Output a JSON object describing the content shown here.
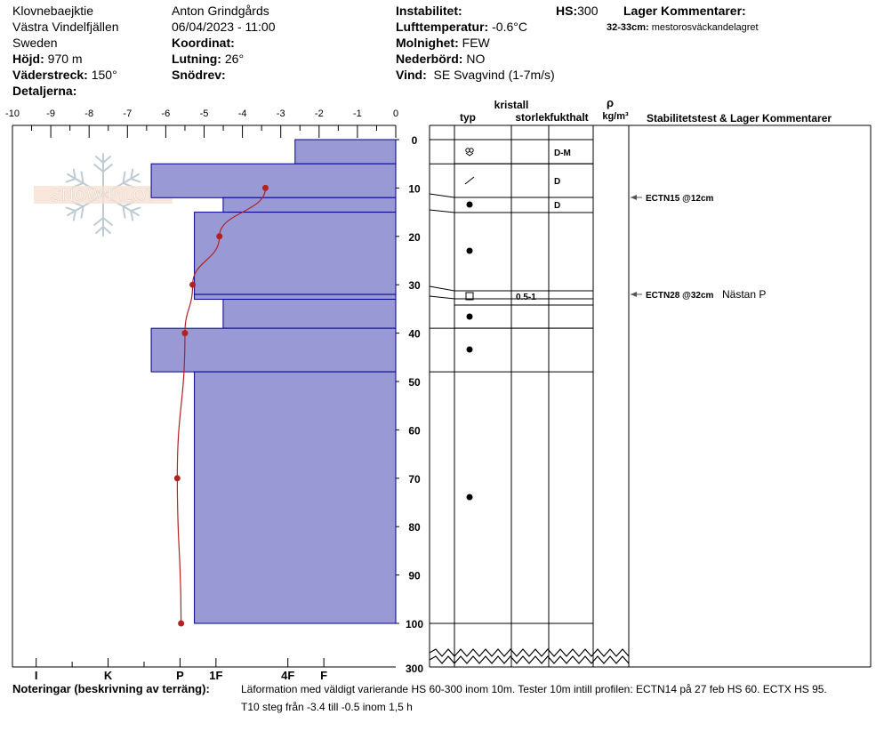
{
  "header": {
    "location": "Klovnebaejktie",
    "region": "Västra Vindelfjällen",
    "country": "Sweden",
    "elevation_label": "Höjd:",
    "elevation": "970 m",
    "aspect_label": "Väderstreck:",
    "aspect": "150°",
    "details_label": "Detaljerna:",
    "observer": "Anton Grindgårds",
    "datetime": "06/04/2023 - 11:00",
    "coord_label": "Koordinat:",
    "slope_label": "Lutning:",
    "slope": "26°",
    "drift_label": "Snödrev:",
    "instability_label": "Instabilitet:",
    "air_temp_label": "Lufttemperatur:",
    "air_temp": "-0.6°C",
    "clouds_label": "Molnighet:",
    "clouds": "FEW",
    "precip_label": "Nederbörd:",
    "precip": "NO",
    "wind_label": "Vind:",
    "wind": "SE Svagvind (1-7m/s)",
    "hs_label": "HS:",
    "hs": "300",
    "layer_comments_label": "Lager Kommentarer:",
    "layer_comment_depth": "32-33cm:",
    "layer_comment_text": "mestorosväckandelagret"
  },
  "chart_data": {
    "type": "bar",
    "temp_axis": {
      "ticks": [
        "-10",
        "-9",
        "-8",
        "-7",
        "-6",
        "-5",
        "-4",
        "-3",
        "-2",
        "-1",
        "0"
      ],
      "range": [
        -10,
        0
      ]
    },
    "hardness_axis": {
      "labels": [
        "I",
        "K",
        "P",
        "1F",
        "4F",
        "F"
      ],
      "values": [
        5,
        4,
        3,
        2.5,
        1.5,
        1
      ]
    },
    "depth_axis": {
      "ticks": [
        "0",
        "10",
        "20",
        "30",
        "40",
        "50",
        "60",
        "70",
        "80",
        "90",
        "100"
      ],
      "bottom_label": "300",
      "range": [
        0,
        100
      ]
    },
    "hardness_layers": [
      {
        "top": 0,
        "bottom": 5,
        "hardness": 1.4
      },
      {
        "top": 5,
        "bottom": 12,
        "hardness": 3.4
      },
      {
        "top": 12,
        "bottom": 15,
        "hardness": 2.4
      },
      {
        "top": 15,
        "bottom": 32,
        "hardness": 2.8
      },
      {
        "top": 32,
        "bottom": 33,
        "hardness": 2.8
      },
      {
        "top": 33,
        "bottom": 39,
        "hardness": 2.4
      },
      {
        "top": 39,
        "bottom": 48,
        "hardness": 3.4
      },
      {
        "top": 48,
        "bottom": 100,
        "hardness": 2.8
      }
    ],
    "temperature_profile": [
      {
        "depth": 10,
        "temp": -3.4
      },
      {
        "depth": 20,
        "temp": -4.6
      },
      {
        "depth": 30,
        "temp": -5.3
      },
      {
        "depth": 40,
        "temp": -5.5
      },
      {
        "depth": 70,
        "temp": -5.7
      },
      {
        "depth": 100,
        "temp": -5.6
      }
    ],
    "columns": {
      "crystal": "kristall",
      "type": "typ",
      "size": "storlek",
      "moisture": "fukthalt",
      "rho": "ρ",
      "density_unit": "kg/m³",
      "comments": "Stabilitetstest & Lager Kommentarer"
    },
    "layer_boundaries": [
      0,
      5,
      12,
      15,
      32,
      33,
      39,
      48,
      100
    ],
    "layer_rows": [
      {
        "top": 0,
        "bottom": 5,
        "grain": "",
        "size": "",
        "moisture": ""
      },
      {
        "top": 5,
        "bottom": 12,
        "grain": "mixed",
        "size": "",
        "moisture": "D-M"
      },
      {
        "top": 12,
        "bottom": 15,
        "grain": "",
        "size": "",
        "moisture": "D"
      },
      {
        "top": 15,
        "bottom": 32,
        "grain": "round",
        "size": "",
        "moisture": "D"
      },
      {
        "top": 32,
        "bottom": 33,
        "grain": "",
        "size": "",
        "moisture": ""
      },
      {
        "top": 33,
        "bottom": 39,
        "grain": "facet",
        "size": "0.5-1",
        "moisture": ""
      },
      {
        "top": 39,
        "bottom": 48,
        "grain": "round",
        "size": "",
        "moisture": ""
      },
      {
        "top": 48,
        "bottom": 100,
        "grain": "round",
        "size": "",
        "moisture": ""
      }
    ],
    "grain_symbols": [
      {
        "depth": 2.5,
        "type": "mixed"
      },
      {
        "depth": 8.5,
        "type": "decomposing"
      },
      {
        "depth": 13.5,
        "type": "round"
      },
      {
        "depth": 23.5,
        "type": "round"
      },
      {
        "depth": 32.5,
        "type": "facet"
      },
      {
        "depth": 36,
        "type": "round"
      },
      {
        "depth": 43.5,
        "type": "round"
      },
      {
        "depth": 74,
        "type": "round"
      }
    ],
    "moisture_labels": [
      {
        "depth": 2.5,
        "text": "D-M"
      },
      {
        "depth": 8.5,
        "text": "D"
      },
      {
        "depth": 13.5,
        "text": "D"
      }
    ],
    "size_labels": [
      {
        "depth": 32.5,
        "text": "0.5-1"
      }
    ],
    "stability_tests": [
      {
        "depth": 12,
        "text": "ECTN15 @12cm",
        "comment": ""
      },
      {
        "depth": 32,
        "text": "ECTN28 @32cm",
        "comment": "Nästan P"
      }
    ]
  },
  "notes": {
    "label": "Noteringar (beskrivning av terräng):",
    "line1": "Läformation med väldigt varierande HS 60-300 inom 10m. Tester 10m intill profilen: ECTN14 på 27 feb HS 60. ECTX HS 95.",
    "line2": "T10 steg från -3.4 till -0.5 inom 1,5 h"
  },
  "watermark": "SNOW PILOT",
  "colors": {
    "layer_fill": "#9999d6",
    "layer_stroke": "#00008b",
    "temp_line": "#b22222"
  }
}
